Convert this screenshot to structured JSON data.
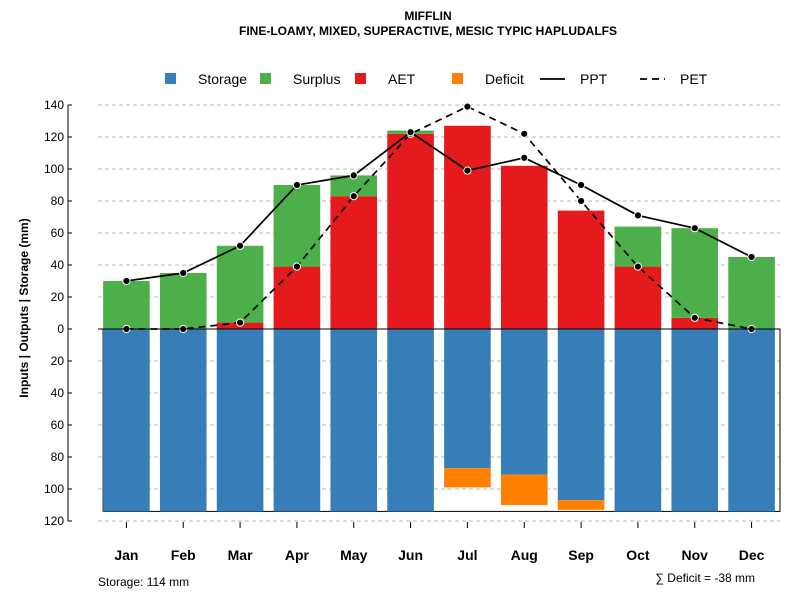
{
  "chart_data": {
    "type": "bar",
    "title": "MIFFLIN",
    "subtitle": "FINE-LOAMY, MIXED, SUPERACTIVE, MESIC TYPIC HAPLUDALFS",
    "ylabel": "Inputs | Outputs | Storage    (mm)",
    "categories": [
      "Jan",
      "Feb",
      "Mar",
      "Apr",
      "May",
      "Jun",
      "Jul",
      "Aug",
      "Sep",
      "Oct",
      "Nov",
      "Dec"
    ],
    "ylim": [
      -120,
      140
    ],
    "yticks": [
      140,
      120,
      100,
      80,
      60,
      40,
      20,
      0,
      -20,
      -40,
      -60,
      -80,
      -100,
      -120
    ],
    "ytick_labels": [
      "140",
      "120",
      "100",
      "80",
      "60",
      "40",
      "20",
      "0",
      "20",
      "40",
      "60",
      "80",
      "100",
      "120"
    ],
    "grid": true,
    "legend_position": "top",
    "legend": [
      {
        "label": "Storage",
        "kind": "square",
        "color": "#377EB8"
      },
      {
        "label": "Surplus",
        "kind": "square",
        "color": "#4DAF4A"
      },
      {
        "label": "AET",
        "kind": "square",
        "color": "#E41A1C"
      },
      {
        "label": "Deficit",
        "kind": "square",
        "color": "#FF7F00"
      },
      {
        "label": "PPT",
        "kind": "solid-line",
        "color": "#000000"
      },
      {
        "label": "PET",
        "kind": "dashed-line",
        "color": "#000000"
      }
    ],
    "series": [
      {
        "name": "Storage",
        "color": "#377EB8",
        "values": [
          114,
          114,
          114,
          114,
          114,
          114,
          87,
          91,
          107,
          114,
          114,
          114
        ]
      },
      {
        "name": "AET",
        "color": "#E41A1C",
        "values": [
          0,
          0,
          4,
          39,
          83,
          122,
          127,
          102,
          74,
          39,
          7,
          0
        ]
      },
      {
        "name": "Surplus",
        "color": "#4DAF4A",
        "values": [
          30,
          35,
          48,
          51,
          13,
          2,
          0,
          0,
          0,
          25,
          56,
          45
        ]
      },
      {
        "name": "Deficit",
        "color": "#FF7F00",
        "values": [
          0,
          0,
          0,
          0,
          0,
          0,
          12,
          19,
          6,
          0,
          0,
          0
        ]
      },
      {
        "name": "PPT",
        "color": "#000000",
        "values": [
          30,
          35,
          52,
          90,
          96,
          123,
          99,
          107,
          90,
          71,
          63,
          45
        ]
      },
      {
        "name": "PET",
        "color": "#000000",
        "values": [
          0,
          0,
          4,
          39,
          83,
          122,
          139,
          122,
          80,
          39,
          7,
          0
        ]
      }
    ],
    "storage_capacity": 114,
    "footer_left": "Storage: 114 mm",
    "footer_right": "∑ Deficit = -38 mm"
  }
}
